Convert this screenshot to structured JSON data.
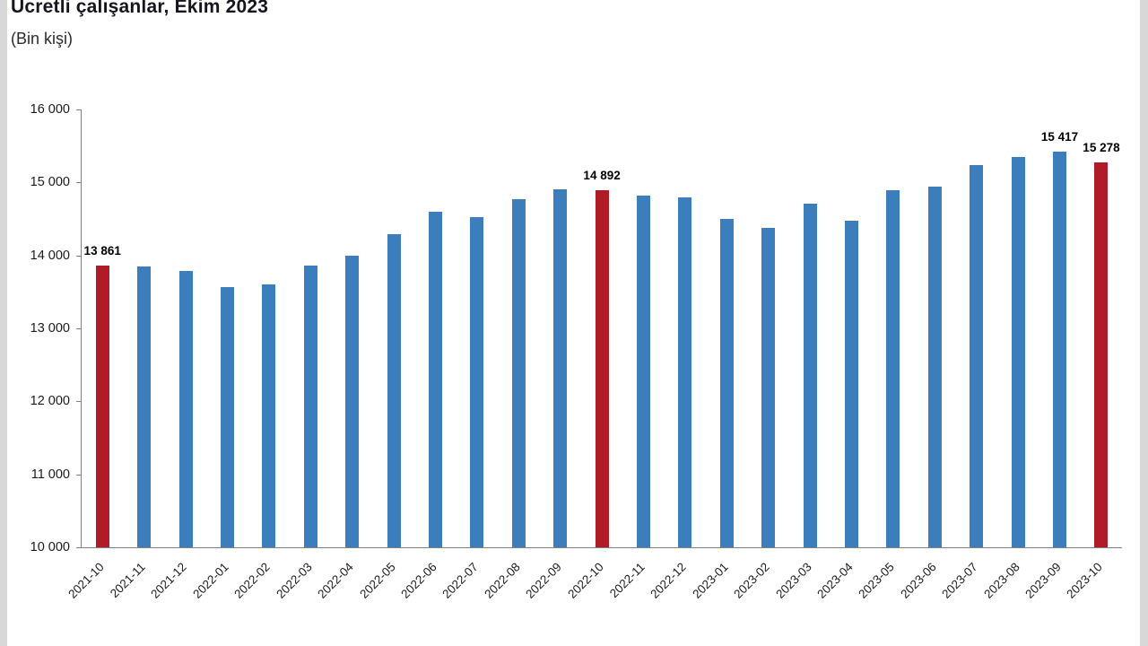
{
  "page": {
    "background": "#ffffff",
    "edge_strip_color": "#d8d8d8"
  },
  "chart_data": {
    "type": "bar",
    "title": "Ücretli çalışanlar, Ekim 2023",
    "subtitle": "(Bin kişi)",
    "categories": [
      "2021-10",
      "2021-11",
      "2021-12",
      "2022-01",
      "2022-02",
      "2022-03",
      "2022-04",
      "2022-05",
      "2022-06",
      "2022-07",
      "2022-08",
      "2022-09",
      "2022-10",
      "2022-11",
      "2022-12",
      "2023-01",
      "2023-02",
      "2023-03",
      "2023-04",
      "2023-05",
      "2023-06",
      "2023-07",
      "2023-08",
      "2023-09",
      "2023-10"
    ],
    "values": [
      13861,
      13845,
      13790,
      13565,
      13605,
      13855,
      13990,
      14290,
      14595,
      14525,
      14775,
      14905,
      14892,
      14825,
      14790,
      14495,
      14380,
      14705,
      14475,
      14890,
      14945,
      15235,
      15345,
      15417,
      15278
    ],
    "highlighted_indices": [
      0,
      12,
      24
    ],
    "data_labels": {
      "0": "13 861",
      "12": "14 892",
      "23": "15 417",
      "24": "15 278"
    },
    "ylim": [
      10000,
      16000
    ],
    "yticks": [
      {
        "value": 10000,
        "label": "10 000"
      },
      {
        "value": 11000,
        "label": "11 000"
      },
      {
        "value": 12000,
        "label": "12 000"
      },
      {
        "value": 13000,
        "label": "13 000"
      },
      {
        "value": 14000,
        "label": "14 000"
      },
      {
        "value": 15000,
        "label": "15 000"
      },
      {
        "value": 16000,
        "label": "16 000"
      }
    ],
    "bar_color": "#3c7dbc",
    "highlight_color": "#b01b28",
    "grid": false,
    "legend": false,
    "x_tick_rotation": -45,
    "xlabel": "",
    "ylabel": ""
  }
}
